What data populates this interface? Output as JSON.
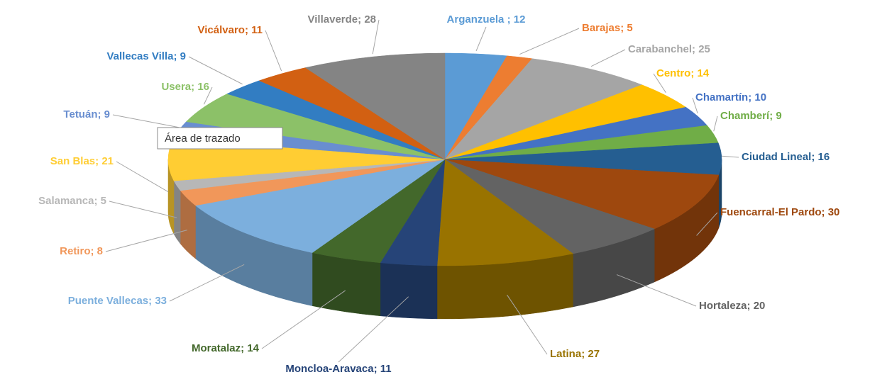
{
  "chart_data": {
    "type": "pie3d",
    "categories": [
      "Arganzuela ",
      "Barajas",
      "Carabanchel",
      "Centro",
      "Chamartín",
      "Chamberí",
      "Ciudad Lineal",
      "Fuencarral-El Pardo",
      "Hortaleza",
      "Latina",
      "Moncloa-Aravaca",
      "Moratalaz",
      "Puente Vallecas",
      "Retiro",
      "Salamanca",
      "San Blas",
      "Tetuán",
      "Usera",
      "Vallecas Villa",
      "Vicálvaro",
      "Villaverde"
    ],
    "values": [
      12,
      5,
      25,
      14,
      10,
      9,
      16,
      30,
      20,
      27,
      11,
      14,
      33,
      8,
      5,
      21,
      9,
      16,
      9,
      11,
      28
    ],
    "colors": [
      "#5b9bd5",
      "#ed7d31",
      "#a5a5a5",
      "#ffc000",
      "#4472c4",
      "#70ad47",
      "#255e91",
      "#9e480e",
      "#636363",
      "#997300",
      "#264478",
      "#43682b",
      "#7cafdd",
      "#f1975a",
      "#b7b7b7",
      "#ffcd33",
      "#698ed0",
      "#8cc168",
      "#327dc2",
      "#d26012",
      "#848484"
    ],
    "label_separator": "; ",
    "tooltip": "Área de trazado"
  }
}
